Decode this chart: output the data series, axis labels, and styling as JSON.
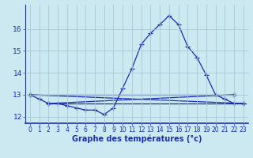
{
  "xlabel": "Graphe des températures (°c)",
  "hours": [
    0,
    1,
    2,
    3,
    4,
    5,
    6,
    7,
    8,
    9,
    10,
    11,
    12,
    13,
    14,
    15,
    16,
    17,
    18,
    19,
    20,
    21,
    22,
    23
  ],
  "main_line": [
    13.0,
    12.8,
    12.6,
    12.6,
    12.5,
    12.4,
    12.3,
    12.3,
    12.1,
    12.4,
    13.3,
    14.2,
    15.3,
    15.8,
    16.2,
    16.6,
    16.2,
    15.2,
    14.7,
    13.9,
    13.0,
    12.8,
    12.6,
    12.6
  ],
  "trend_lines": [
    {
      "x": [
        0,
        23
      ],
      "y": [
        13.0,
        12.6
      ]
    },
    {
      "x": [
        2,
        23
      ],
      "y": [
        12.6,
        12.6
      ]
    },
    {
      "x": [
        0,
        22
      ],
      "y": [
        13.0,
        13.0
      ]
    },
    {
      "x": [
        2,
        22
      ],
      "y": [
        12.6,
        13.0
      ]
    }
  ],
  "ylim": [
    11.7,
    17.1
  ],
  "yticks": [
    12,
    13,
    14,
    15,
    16
  ],
  "bg_color": "#cce8f0",
  "grid_color": "#a8c8d8",
  "line_color": "#1a2eb0",
  "axis_color": "#1a2eb0",
  "line_width": 0.9,
  "marker": "+",
  "marker_size": 4,
  "xlabel_fontsize": 7,
  "ytick_fontsize": 6.5,
  "xtick_fontsize": 5.5
}
